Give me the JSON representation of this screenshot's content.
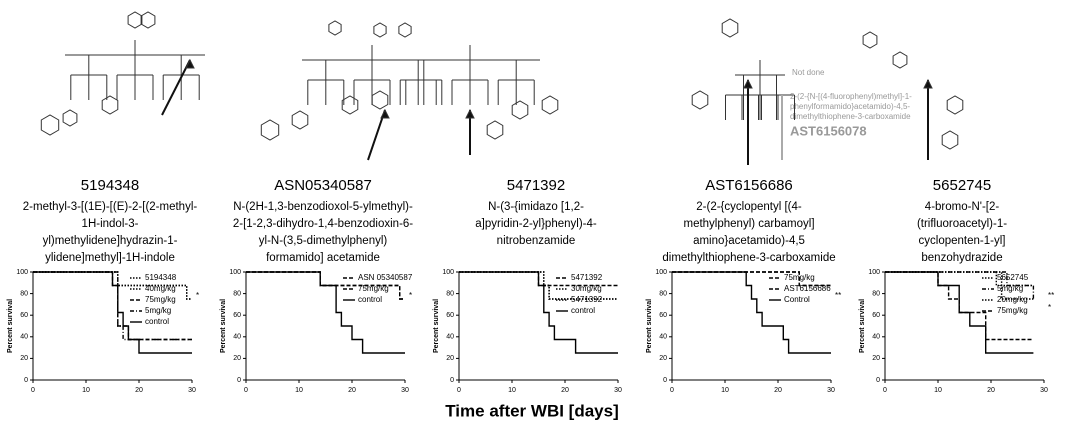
{
  "compounds": [
    {
      "id": "5194348",
      "name": [
        "2-methyl-3-[(1E)-[(E)-2-[(2-methyl-",
        "1H-indol-3-",
        "yl)methylidene]hydrazin-1-",
        "ylidene]methyl]-1H-indole"
      ]
    },
    {
      "id": "ASN05340587",
      "name": [
        "N-(2H-1,3-benzodioxol-5-ylmethyl)-",
        "2-[1-2,3-dihydro-1,4-benzodioxin-6-",
        "yl-N-(3,5-dimethylphenyl)",
        "formamido] acetamide"
      ]
    },
    {
      "id": "5471392",
      "name": [
        "N-(3-{imidazo [1,2-",
        "a]pyridin-2-yl}phenyl)-4-",
        "nitrobenzamide"
      ]
    },
    {
      "id": "AST6156686",
      "name": [
        "2-(2-{cyclopentyl [(4-",
        "methylphenyl) carbamoyl]",
        "amino}acetamido)-4,5",
        "dimethylthiophene-3-carboxamide"
      ]
    },
    {
      "id": "5652745",
      "name": [
        "4-bromo-N'-[2-",
        "(trifluoroacetyl)-1-",
        "cyclopenten-1-yl]",
        "benzohydrazide"
      ]
    }
  ],
  "not_tested": {
    "status": "Not done",
    "name": [
      "2-(2-{N-[(4-fluorophenyl)methyl]-1-",
      "phenylformamido}acetamido)-4,5-",
      "dimethylthiophene-3-carboxamide"
    ],
    "id": "AST6156078"
  },
  "x_label": "Time after WBI [days]",
  "chart_data": [
    {
      "type": "line",
      "step": true,
      "y_label": "Percent survival",
      "xlim": [
        0,
        30
      ],
      "ylim": [
        0,
        100
      ],
      "xticks": [
        0,
        10,
        20,
        30
      ],
      "yticks": [
        0,
        20,
        40,
        60,
        80,
        100
      ],
      "notes": [
        "*"
      ],
      "series": [
        {
          "name": "5194348",
          "color": "#000",
          "style": "dotted",
          "x": [
            0,
            16,
            29,
            30
          ],
          "values": [
            100,
            87.5,
            75,
            75
          ]
        },
        {
          "name": "40mg/kg",
          "color": "#000",
          "style": "dotted",
          "x": [
            0,
            16,
            29,
            30
          ],
          "values": [
            100,
            87.5,
            75,
            75
          ]
        },
        {
          "name": "75mg/kg",
          "color": "#000",
          "style": "dashed",
          "x": [
            0,
            15,
            16,
            18,
            30
          ],
          "values": [
            100,
            87.5,
            50,
            37.5,
            37.5
          ]
        },
        {
          "name": "5mg/kg",
          "color": "#000",
          "style": "dashdot",
          "x": [
            0,
            16,
            17,
            30
          ],
          "values": [
            100,
            50,
            37.5,
            37.5
          ]
        },
        {
          "name": "control",
          "color": "#000",
          "style": "solid",
          "x": [
            0,
            15,
            16,
            17,
            18,
            20,
            30
          ],
          "values": [
            100,
            87.5,
            62.5,
            50,
            37.5,
            25,
            25
          ]
        }
      ]
    },
    {
      "type": "line",
      "step": true,
      "y_label": "Percent survival",
      "xlim": [
        0,
        30
      ],
      "ylim": [
        0,
        100
      ],
      "xticks": [
        0,
        10,
        20,
        30
      ],
      "yticks": [
        0,
        20,
        40,
        60,
        80,
        100
      ],
      "notes": [
        "*"
      ],
      "series": [
        {
          "name": "ASN 05340587",
          "color": "#000",
          "style": "dashed",
          "x": [
            0,
            14,
            29,
            30
          ],
          "values": [
            100,
            87.5,
            75,
            75
          ]
        },
        {
          "name": "75mg/kg",
          "color": "#000",
          "style": "dashed",
          "x": [
            0,
            14,
            29,
            30
          ],
          "values": [
            100,
            87.5,
            75,
            75
          ]
        },
        {
          "name": "control",
          "color": "#000",
          "style": "solid",
          "x": [
            0,
            14,
            17,
            18,
            20,
            22,
            30
          ],
          "values": [
            100,
            87.5,
            62.5,
            50,
            37.5,
            25,
            25
          ]
        }
      ]
    },
    {
      "type": "line",
      "step": true,
      "y_label": "Percent survival",
      "xlim": [
        0,
        30
      ],
      "ylim": [
        0,
        100
      ],
      "xticks": [
        0,
        10,
        20,
        30
      ],
      "yticks": [
        0,
        20,
        40,
        60,
        80,
        100
      ],
      "notes": [],
      "series": [
        {
          "name": "5471392",
          "color": "#000",
          "style": "dashed",
          "x": [
            0,
            15,
            30
          ],
          "values": [
            100,
            87.5,
            87.5
          ]
        },
        {
          "name": "30mg/kg",
          "color": "#000",
          "style": "dotted",
          "x": [
            0,
            16,
            17,
            30
          ],
          "values": [
            100,
            87.5,
            75,
            75
          ]
        },
        {
          "name": "5471392",
          "color": "#000",
          "style": "dotted",
          "x": [
            0,
            16,
            17,
            30
          ],
          "values": [
            100,
            87.5,
            75,
            75
          ]
        },
        {
          "name": "control",
          "color": "#000",
          "style": "solid",
          "x": [
            0,
            15,
            16,
            17,
            18,
            22,
            30
          ],
          "values": [
            100,
            87.5,
            62.5,
            50,
            37.5,
            25,
            25
          ]
        }
      ]
    },
    {
      "type": "line",
      "step": true,
      "y_label": "Percent survival",
      "xlim": [
        0,
        30
      ],
      "ylim": [
        0,
        100
      ],
      "xticks": [
        0,
        10,
        20,
        30
      ],
      "yticks": [
        0,
        20,
        40,
        60,
        80,
        100
      ],
      "notes": [
        "**"
      ],
      "series": [
        {
          "name": "75mg/kg",
          "color": "#000",
          "style": "dashed",
          "x": [
            0,
            24,
            30
          ],
          "values": [
            100,
            87.5,
            87.5
          ]
        },
        {
          "name": "AST6156686",
          "color": "#000",
          "style": "dashed",
          "x": [
            0,
            24,
            30
          ],
          "values": [
            100,
            87.5,
            87.5
          ]
        },
        {
          "name": "Control",
          "color": "#000",
          "style": "solid",
          "x": [
            0,
            14,
            15,
            16,
            17,
            21,
            22,
            30
          ],
          "values": [
            100,
            87.5,
            75,
            62.5,
            50,
            37.5,
            25,
            25
          ]
        }
      ]
    },
    {
      "type": "line",
      "step": true,
      "y_label": "Percent survival",
      "xlim": [
        0,
        30
      ],
      "ylim": [
        0,
        100
      ],
      "xticks": [
        0,
        10,
        20,
        30
      ],
      "yticks": [
        0,
        20,
        40,
        60,
        80,
        100
      ],
      "notes": [
        "**",
        "*"
      ],
      "series": [
        {
          "name": "5652745",
          "color": "#000",
          "style": "dotted",
          "x": [
            0,
            22,
            28
          ],
          "values": [
            100,
            87.5,
            87.5
          ]
        },
        {
          "name": "5mg/kg",
          "color": "#000",
          "style": "dashdot",
          "x": [
            0,
            23,
            28
          ],
          "values": [
            100,
            87.5,
            75
          ]
        },
        {
          "name": "20mg/kg",
          "color": "#000",
          "style": "dotted",
          "x": [
            0,
            21,
            22,
            28
          ],
          "values": [
            100,
            87.5,
            75,
            75
          ]
        },
        {
          "name": "75mg/kg",
          "color": "#000",
          "style": "dashed",
          "x": [
            0,
            10,
            12,
            14,
            19,
            28
          ],
          "values": [
            100,
            87.5,
            75,
            62.5,
            37.5,
            37.5
          ]
        },
        {
          "color": "#000",
          "style": "solid",
          "x": [
            0,
            10,
            14,
            16,
            19,
            28
          ],
          "values": [
            100,
            87.5,
            62.5,
            50,
            25,
            25
          ]
        }
      ]
    }
  ]
}
